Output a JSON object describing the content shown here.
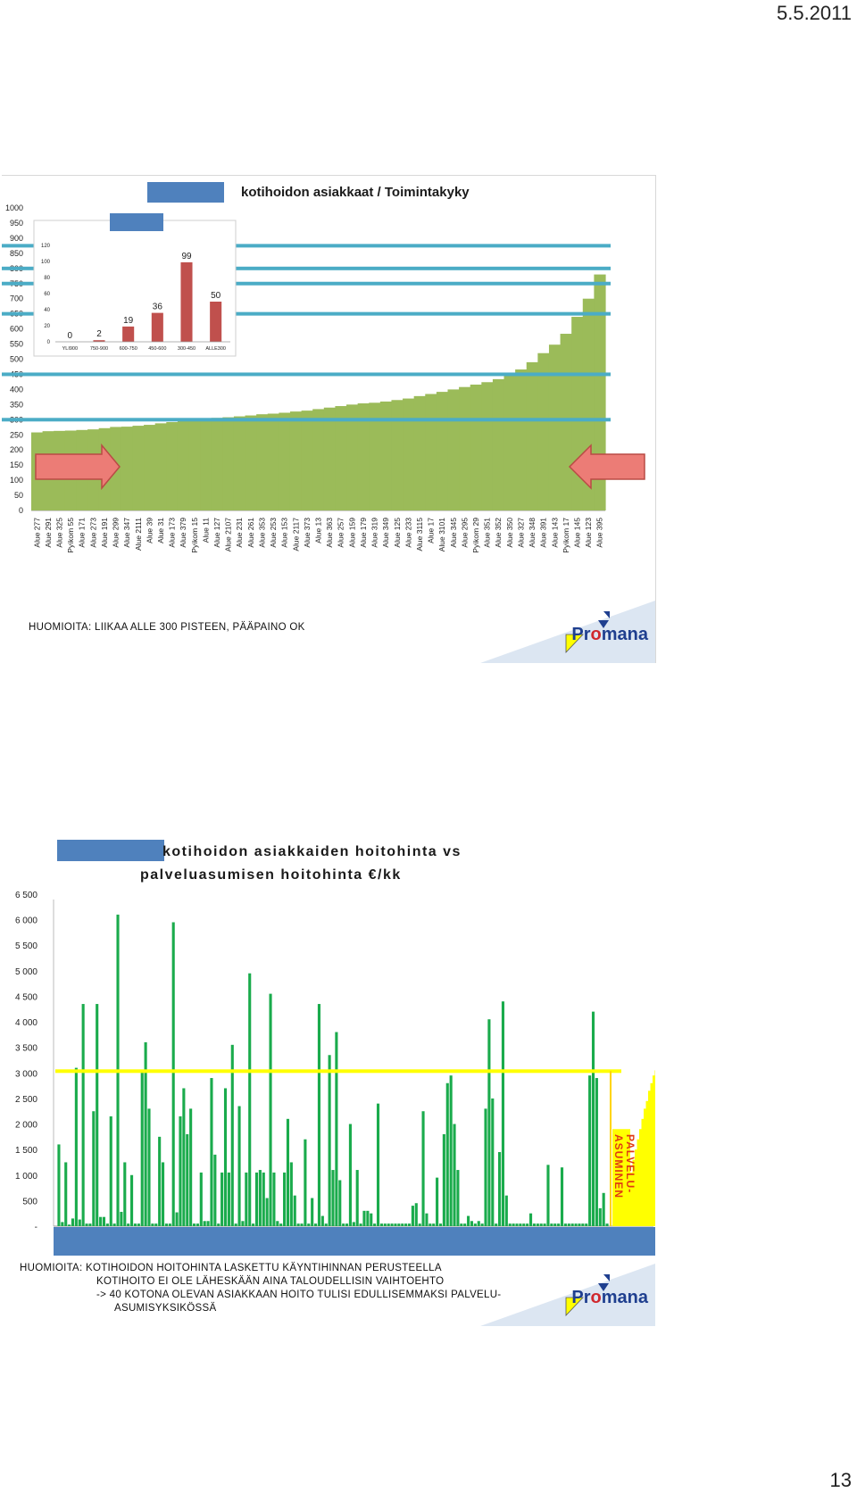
{
  "page": {
    "date": "5.5.2011",
    "number": "13"
  },
  "slide1": {
    "title": "kotihoidon asiakkaat / Toimintakyky",
    "note": "HUOMIOITA: LIIKAA ALLE 300 PISTEEN, PÄÄPAINO OK",
    "logo": {
      "pre": "Pr",
      "o": "o",
      "post": "mana"
    },
    "colors": {
      "bars": "#9bbb59",
      "gridline": "#4bacc6",
      "arrow": "#ec7c76",
      "inset_bars": "#c0504d",
      "mask": "#4f81bd"
    }
  },
  "slide2": {
    "title_line1": "kotihoidon asiakkaiden hoitohinta vs",
    "title_line2": "palveluasumisen hoitohinta €/kk",
    "note_lines": [
      "HUOMIOITA: KOTIHOIDON HOITOHINTA LASKETTU KÄYNTIHINNAN PERUSTEELLA",
      "KOTIHOITO EI OLE LÄHESKÄÄN AINA TALOUDELLISIN VAIHTOEHTO",
      "-> 40 KOTONA OLEVAN ASIAKKAAN HOITO TULISI EDULLISEMMAKSI PALVELU-",
      "ASUMISYKSIKÖSSÄ"
    ],
    "logo": {
      "pre": "Pr",
      "o": "o",
      "post": "mana"
    },
    "colors": {
      "bars": "#1aab4c",
      "reference": "#ffff00",
      "reference_border": "#ffd400",
      "label": "#e03a12",
      "mask": "#4f81bd"
    }
  },
  "chart_data": [
    {
      "type": "bar",
      "ylim": [
        0,
        1000
      ],
      "yticks": [
        "0",
        "50",
        "100",
        "150",
        "200",
        "250",
        "300",
        "350",
        "400",
        "450",
        "500",
        "550",
        "600",
        "650",
        "700",
        "750",
        "800",
        "850",
        "900",
        "950",
        "1000"
      ],
      "xtick_labels": [
        "Alue 277",
        "Alue 291",
        "Alue 325",
        "Pyikom 55",
        "Alue 171",
        "Alue 273",
        "Alue 191",
        "Alue 299",
        "Alue 347",
        "Alue 2111",
        "Alue 39",
        "Alue 31",
        "Alue 173",
        "Alue 379",
        "Pyikom 15",
        "Alue 11",
        "Alue 127",
        "Alue 2107",
        "Alue 231",
        "Alue 261",
        "Alue 353",
        "Alue 253",
        "Alue 153",
        "Alue 2117",
        "Alue 373",
        "Alue 13",
        "Alue 363",
        "Alue 257",
        "Alue 159",
        "Alue 179",
        "Alue 319",
        "Alue 349",
        "Alue 125",
        "Alue 233",
        "Alue 3115",
        "Alue 17",
        "Alue 3101",
        "Alue 345",
        "Alue 295",
        "Pyikom 29",
        "Alue 351",
        "Alue 352",
        "Alue 350",
        "Alue 327",
        "Alue 348",
        "Alue 391",
        "Alue 143",
        "Pyikom 17",
        "Alue 145",
        "Alue 123",
        "Alue 395"
      ],
      "values": [
        258,
        262,
        263,
        264,
        266,
        268,
        272,
        276,
        277,
        280,
        283,
        288,
        292,
        296,
        300,
        304,
        306,
        308,
        311,
        314,
        318,
        320,
        323,
        327,
        330,
        335,
        340,
        345,
        350,
        354,
        356,
        360,
        365,
        370,
        378,
        385,
        392,
        400,
        408,
        416,
        424,
        434,
        448,
        466,
        490,
        520,
        548,
        584,
        640,
        700,
        780
      ]
    },
    {
      "type": "bar",
      "ylim": [
        0,
        1000
      ],
      "categories": [
        "YLI900",
        "750-900",
        "600-750",
        "450-600",
        "300-450",
        "ALLE300"
      ],
      "values": [
        0,
        2,
        19,
        36,
        99,
        50
      ],
      "data_labels": [
        "0",
        "2",
        "19",
        "36",
        "99",
        "50"
      ],
      "yticks": [
        "0",
        "20",
        "40",
        "60",
        "80",
        "100",
        "120"
      ]
    },
    {
      "type": "bar",
      "ylim": [
        0,
        6500
      ],
      "yticks": [
        "-",
        "500",
        "1 000",
        "1 500",
        "2 000",
        "2 500",
        "3 000",
        "3 500",
        "4 000",
        "4 500",
        "5 000",
        "5 500",
        "6 000",
        "6 500"
      ],
      "values": [
        1600,
        80,
        1250,
        30,
        150,
        3100,
        130,
        4350,
        50,
        50,
        2250,
        4350,
        180,
        180,
        50,
        2150,
        50,
        6100,
        280,
        1250,
        50,
        1000,
        50,
        50,
        3050,
        3600,
        2300,
        50,
        50,
        1750,
        1250,
        50,
        50,
        5950,
        270,
        2150,
        2700,
        1800,
        2300,
        50,
        50,
        1050,
        100,
        100,
        2900,
        1400,
        50,
        1050,
        2700,
        1050,
        3550,
        50,
        2350,
        100,
        1050,
        4950,
        50,
        1050,
        1100,
        1050,
        550,
        4550,
        1050,
        100,
        50,
        1050,
        2100,
        1250,
        600,
        50,
        50,
        1700,
        50,
        550,
        50,
        4350,
        200,
        50,
        3350,
        1100,
        3800,
        900,
        50,
        50,
        2000,
        80,
        1100,
        50,
        300,
        300,
        250,
        50,
        2400,
        50,
        50,
        50,
        50,
        50,
        50,
        50,
        50,
        50,
        400,
        450,
        50,
        2250,
        250,
        50,
        50,
        950,
        50,
        1800,
        2800,
        2950,
        2000,
        1100,
        50,
        50,
        200,
        100,
        50,
        100,
        50,
        2300,
        4050,
        2500,
        50,
        1450,
        4400,
        600,
        50,
        50,
        50,
        50,
        50,
        50,
        250,
        50,
        50,
        50,
        50,
        1200,
        50,
        50,
        50,
        1150,
        50,
        50,
        50,
        50,
        50,
        50,
        50,
        2950,
        4200,
        2900,
        350,
        650,
        50
      ],
      "reference_series": {
        "name": "PALVELU-ASUMINEN",
        "base": 3000,
        "tail": [
          1050,
          1300,
          1500,
          1700,
          1900,
          2100,
          2300,
          2450,
          2650,
          2800,
          2950,
          3050,
          3100,
          3150
        ]
      }
    }
  ]
}
